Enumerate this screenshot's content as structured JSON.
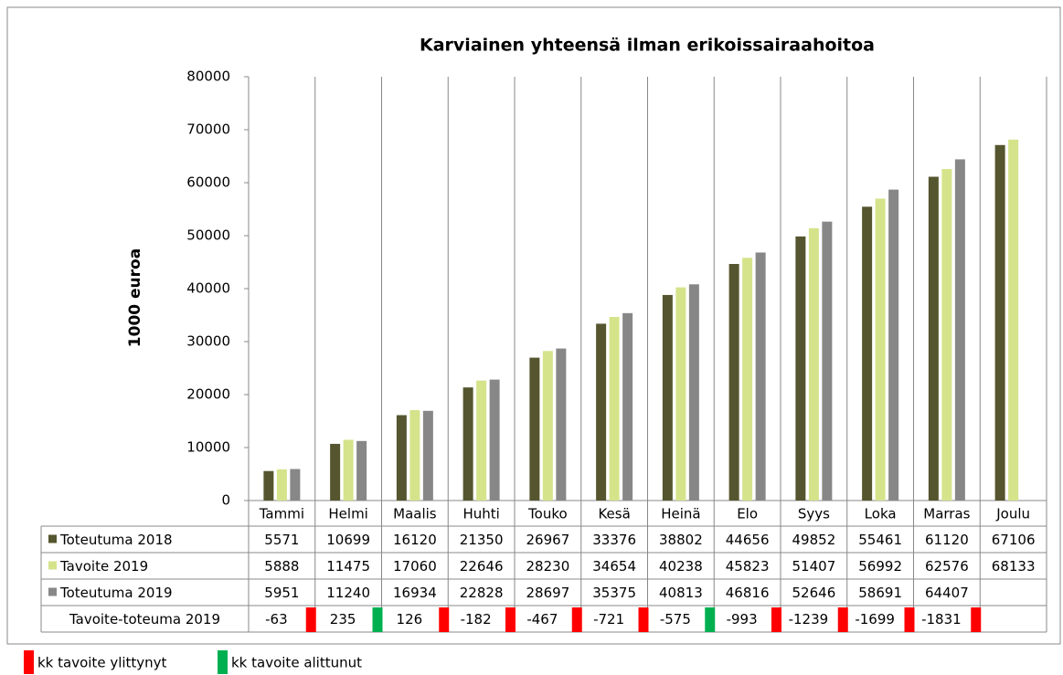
{
  "chart_data": {
    "type": "bar",
    "title": "Karviainen yhteensä ilman erikoissairaahoitoa",
    "y_label": "1000 euroa",
    "categories": [
      "Tammi",
      "Helmi",
      "Maalis",
      "Huhti",
      "Touko",
      "Kesä",
      "Heinä",
      "Elo",
      "Syys",
      "Loka",
      "Marras",
      "Joulu"
    ],
    "series": [
      {
        "name": "Toteutuma 2018",
        "color": "#55552f",
        "values": [
          5571,
          10699,
          16120,
          21350,
          26967,
          33376,
          38802,
          44656,
          49852,
          55461,
          61120,
          67106
        ]
      },
      {
        "name": "Tavoite 2019",
        "color": "#d5e38b",
        "values": [
          5888,
          11475,
          17060,
          22646,
          28230,
          34654,
          40238,
          45823,
          51407,
          56992,
          62576,
          68133
        ]
      },
      {
        "name": "Toteutuma 2019",
        "color": "#878787",
        "values": [
          5951,
          11240,
          16934,
          22828,
          28697,
          35375,
          40813,
          46816,
          52646,
          58691,
          64407,
          null
        ]
      }
    ],
    "difference_row": {
      "name": "Tavoite-toteuma 2019",
      "values": [
        -63,
        235,
        126,
        -182,
        -467,
        -721,
        -575,
        -993,
        -1239,
        -1699,
        -1831,
        null
      ],
      "indicator_colors": [
        "#ff0000",
        "#00b050",
        "#ff0000",
        "#ff0000",
        "#ff0000",
        "#ff0000",
        "#00b050",
        "#ff0000",
        "#ff0000",
        "#ff0000",
        "#ff0000",
        null
      ]
    },
    "ylim": [
      0,
      80000
    ],
    "yticks": [
      0,
      10000,
      20000,
      30000,
      40000,
      50000,
      60000,
      70000,
      80000
    ],
    "grid": false,
    "notes": [
      {
        "label": "kk tavoite ylittynyt",
        "color": "#ff0000"
      },
      {
        "label": "kk tavoite alittunut",
        "color": "#00b050"
      }
    ]
  }
}
